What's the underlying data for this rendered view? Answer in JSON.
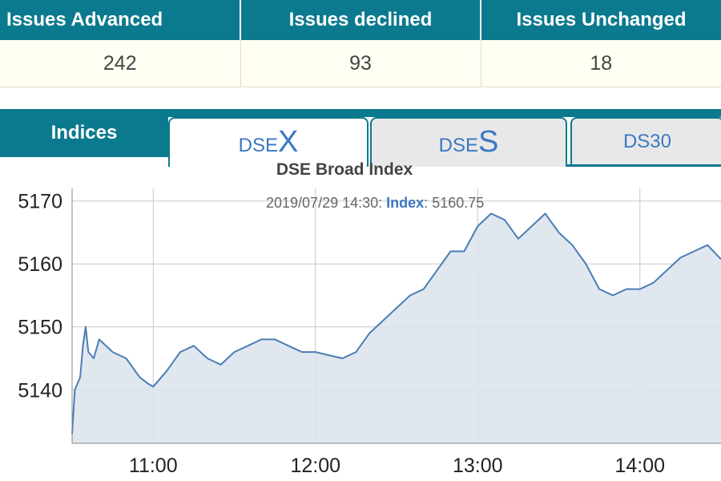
{
  "stats": {
    "headers": [
      "Issues Advanced",
      "Issues declined",
      "Issues Unchanged"
    ],
    "values": [
      "242",
      "93",
      "18"
    ]
  },
  "tabs": {
    "indices_label": "Indices",
    "dsex": {
      "prefix": "DSE",
      "letter": "X"
    },
    "dses": {
      "prefix": "DSE",
      "letter": "S"
    },
    "ds30": "DS30",
    "active": "dsex"
  },
  "chart": {
    "title": "DSE Broad Index",
    "tooltip": {
      "time": "2019/07/29 14:30:",
      "key": "Index",
      "sep": ":",
      "value": "5160.75"
    }
  },
  "colors": {
    "header_bg": "#0c7a8e",
    "tab_text": "#3a78c4",
    "line": "#4a7db5",
    "area": "#dbe3ec"
  },
  "chart_data": {
    "type": "area",
    "title": "DSE Broad Index",
    "xlabel": "",
    "ylabel": "",
    "ylim": [
      5131.5,
      5172
    ],
    "y_ticks": [
      "5170",
      "5160",
      "5150",
      "5140"
    ],
    "x_ticks": [
      "11:00",
      "12:00",
      "13:00",
      "14:00"
    ],
    "grid": true,
    "series": [
      {
        "x": [
          "10:30",
          "10:31",
          "10:33",
          "10:34",
          "10:35",
          "10:36",
          "10:38",
          "10:40",
          "10:45",
          "10:50",
          "10:55",
          "10:58",
          "11:00",
          "11:05",
          "11:10",
          "11:15",
          "11:20",
          "11:25",
          "11:30",
          "11:35",
          "11:40",
          "11:45",
          "11:50",
          "11:55",
          "12:00",
          "12:05",
          "12:10",
          "12:15",
          "12:20",
          "12:25",
          "12:30",
          "12:35",
          "12:40",
          "12:45",
          "12:50",
          "12:55",
          "13:00",
          "13:05",
          "13:10",
          "13:15",
          "13:20",
          "13:25",
          "13:30",
          "13:35",
          "13:40",
          "13:45",
          "13:50",
          "13:55",
          "14:00",
          "14:05",
          "14:10",
          "14:15",
          "14:20",
          "14:25",
          "14:30"
        ],
        "y": [
          5133,
          5140,
          5142,
          5147,
          5150,
          5146,
          5145,
          5148,
          5146,
          5145,
          5142,
          5141,
          5140.5,
          5143,
          5146,
          5147,
          5145,
          5144,
          5146,
          5147,
          5148,
          5148,
          5147,
          5146,
          5146,
          5145.5,
          5145,
          5146,
          5149,
          5151,
          5153,
          5155,
          5156,
          5159,
          5162,
          5162,
          5166,
          5168,
          5167,
          5164,
          5166,
          5168,
          5165,
          5163,
          5160,
          5156,
          5155,
          5156,
          5156,
          5157,
          5159,
          5161,
          5162,
          5163,
          5160.75
        ]
      }
    ]
  }
}
